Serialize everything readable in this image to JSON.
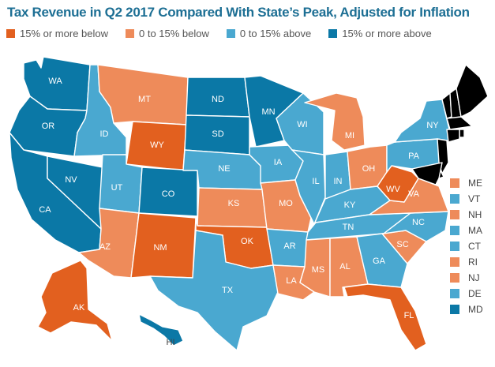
{
  "title": "Tax Revenue in Q2 2017 Compared With State’s Peak, Adjusted for Inflation",
  "colors": {
    "c1": "#e2601f",
    "c2": "#ee8b5a",
    "c3": "#4aa8d0",
    "c4": "#0b78a6"
  },
  "legend": [
    {
      "key": "c1",
      "label": "15% or more below"
    },
    {
      "key": "c2",
      "label": "0 to 15% below"
    },
    {
      "key": "c3",
      "label": "0 to 15% above"
    },
    {
      "key": "c4",
      "label": "15% or more above"
    }
  ],
  "states": {
    "WA": "c4",
    "OR": "c4",
    "CA": "c4",
    "NV": "c4",
    "ID": "c3",
    "MT": "c2",
    "WY": "c1",
    "UT": "c3",
    "CO": "c4",
    "AZ": "c2",
    "NM": "c1",
    "ND": "c4",
    "SD": "c4",
    "NE": "c3",
    "KS": "c2",
    "OK": "c1",
    "TX": "c3",
    "MN": "c4",
    "IA": "c3",
    "MO": "c2",
    "AR": "c3",
    "LA": "c2",
    "WI": "c3",
    "IL": "c3",
    "MI": "c2",
    "IN": "c3",
    "OH": "c2",
    "KY": "c3",
    "TN": "c3",
    "MS": "c2",
    "AL": "c2",
    "GA": "c3",
    "FL": "c1",
    "SC": "c2",
    "NC": "c3",
    "VA": "c2",
    "WV": "c1",
    "PA": "c3",
    "NY": "c3",
    "AK": "c1",
    "HI": "c4"
  },
  "small_states": [
    {
      "abbr": "ME",
      "key": "c2"
    },
    {
      "abbr": "VT",
      "key": "c3"
    },
    {
      "abbr": "NH",
      "key": "c2"
    },
    {
      "abbr": "MA",
      "key": "c3"
    },
    {
      "abbr": "CT",
      "key": "c3"
    },
    {
      "abbr": "RI",
      "key": "c2"
    },
    {
      "abbr": "NJ",
      "key": "c2"
    },
    {
      "abbr": "DE",
      "key": "c3"
    },
    {
      "abbr": "MD",
      "key": "c4"
    }
  ]
}
